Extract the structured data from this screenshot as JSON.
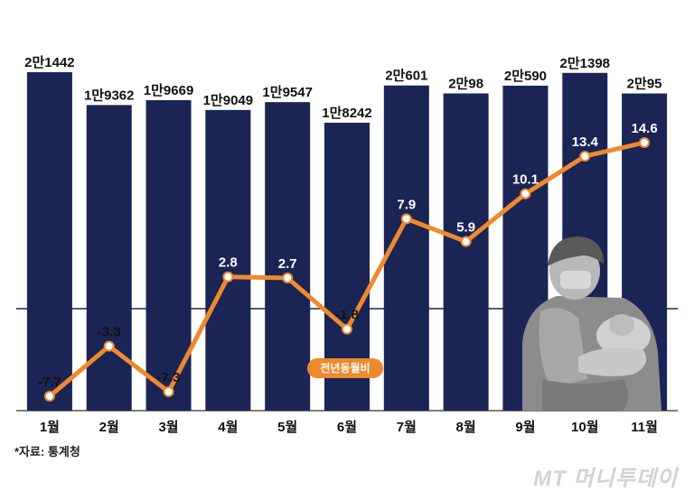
{
  "chart_data": {
    "type": "bar",
    "categories": [
      "1월",
      "2월",
      "3월",
      "4월",
      "5월",
      "6월",
      "7월",
      "8월",
      "9월",
      "10월",
      "11월"
    ],
    "bar_labels": [
      "2만1442",
      "1만9362",
      "1만9669",
      "1만9049",
      "1만9547",
      "1만8242",
      "2만601",
      "2만98",
      "2만590",
      "2만1398",
      "2만95"
    ],
    "bar_values": [
      21442,
      19362,
      19669,
      19049,
      19547,
      18242,
      20601,
      20098,
      20590,
      21398,
      20095
    ],
    "line_labels": [
      "-7.7",
      "-3.3",
      "-7.3",
      "2.8",
      "2.7",
      "-1.8",
      "7.9",
      "5.9",
      "10.1",
      "13.4",
      "14.6"
    ],
    "line_values": [
      -7.7,
      -3.3,
      -7.3,
      2.8,
      2.7,
      -1.8,
      7.9,
      5.9,
      10.1,
      13.4,
      14.6
    ],
    "line_series_name": "전년동월비",
    "bar_color": "#1a2555",
    "line_color": "#f0892e",
    "baseline_color": "#1a2555"
  },
  "source": "*자료: 통계청",
  "watermark": "MT 머니투데이"
}
